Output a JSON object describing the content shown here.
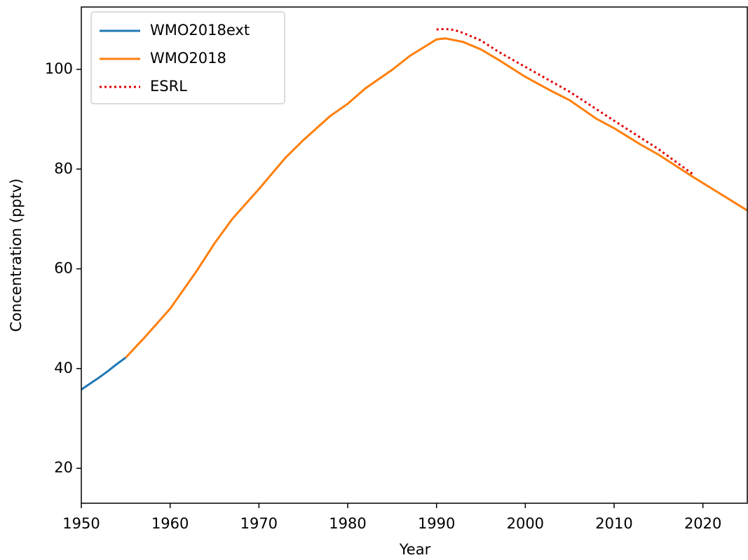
{
  "chart_data": {
    "type": "line",
    "xlabel": "Year",
    "ylabel": "Concentration (pptv)",
    "xlim": [
      1950,
      2025
    ],
    "ylim": [
      13,
      112.5
    ],
    "xticks": [
      1950,
      1960,
      1970,
      1980,
      1990,
      2000,
      2010,
      2020
    ],
    "yticks": [
      20,
      40,
      60,
      80,
      100
    ],
    "grid": false,
    "legend": "upper left",
    "series": [
      {
        "name": "WMO2018ext",
        "color": "#1f77b4",
        "style": "solid",
        "x": [
          1950,
          1951,
          1952,
          1953,
          1954,
          1955
        ],
        "values": [
          35.8,
          37.0,
          38.2,
          39.5,
          40.9,
          42.2
        ]
      },
      {
        "name": "WMO2018",
        "color": "#ff7f0e",
        "style": "solid",
        "x": [
          1955,
          1957,
          1960,
          1963,
          1965,
          1967,
          1970,
          1973,
          1975,
          1978,
          1980,
          1982,
          1985,
          1987,
          1990,
          1991,
          1993,
          1995,
          1997,
          2000,
          2003,
          2005,
          2008,
          2010,
          2013,
          2015,
          2019,
          2020,
          2025
        ],
        "values": [
          42.2,
          46.0,
          52.0,
          59.6,
          65.1,
          70.0,
          76.0,
          82.3,
          85.8,
          90.6,
          93.1,
          96.2,
          99.9,
          102.7,
          106.0,
          106.2,
          105.5,
          104.0,
          101.9,
          98.5,
          95.6,
          93.8,
          90.1,
          88.2,
          84.9,
          82.9,
          78.3,
          77.2,
          71.7
        ]
      },
      {
        "name": "ESRL",
        "color": "#e00000",
        "style": "dotted",
        "x": [
          1990,
          1991,
          1992,
          1993,
          1995,
          1997,
          2000,
          2005,
          2010,
          2015,
          2019
        ],
        "values": [
          108.0,
          108.1,
          107.9,
          107.3,
          105.8,
          103.5,
          100.5,
          95.5,
          89.7,
          84.0,
          78.8
        ]
      }
    ]
  }
}
